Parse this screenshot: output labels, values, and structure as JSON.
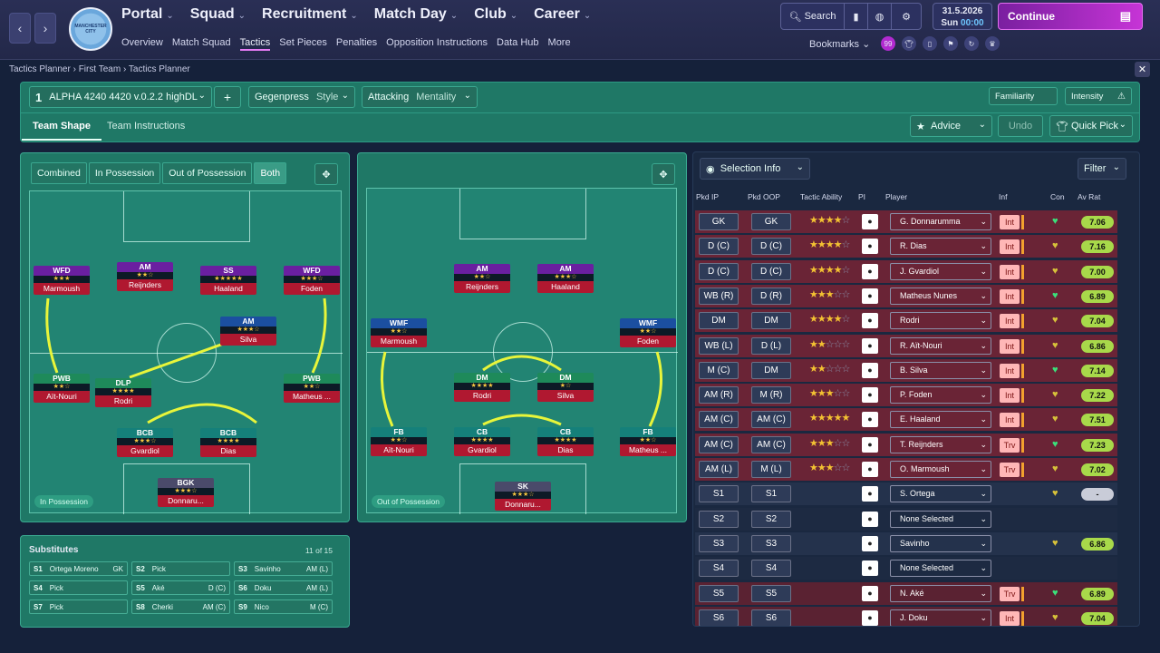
{
  "header": {
    "nav_back": "‹",
    "nav_fwd": "›",
    "crest": "MANCHESTER CITY",
    "main_nav": [
      {
        "label": "Portal"
      },
      {
        "label": "Squad"
      },
      {
        "label": "Recruitment"
      },
      {
        "label": "Match Day"
      },
      {
        "label": "Club"
      },
      {
        "label": "Career"
      }
    ],
    "sub_nav": [
      "Overview",
      "Match Squad",
      "Tactics",
      "Set Pieces",
      "Penalties",
      "Opposition Instructions",
      "Data Hub",
      "More"
    ],
    "search": "Search",
    "date": "31.5.2026",
    "day": "Sun",
    "time": "00:00",
    "continue": "Continue",
    "bookmarks": "Bookmarks",
    "badge": "99"
  },
  "breadcrumb": [
    "Tactics Planner",
    "First Team",
    "Tactics Planner"
  ],
  "tactic": {
    "number": "1",
    "name": "ALPHA 4240 4420 v.0.2.2 highDL",
    "style_value": "Gegenpress",
    "style_label": "Style",
    "mentality_value": "Attacking",
    "mentality_label": "Mentality",
    "familiarity": "Familiarity",
    "intensity": "Intensity",
    "add": "+"
  },
  "tabs": [
    "Team Shape",
    "Team Instructions"
  ],
  "actions": {
    "advice": "Advice",
    "undo": "Undo",
    "quick_pick": "Quick Pick"
  },
  "phase_toggle": [
    "Combined",
    "In Possession",
    "Out of Possession",
    "Both"
  ],
  "in_possession": {
    "label": "In Possession",
    "players": [
      {
        "role": "WFD",
        "name": "Marmoush",
        "stars": "★★★",
        "color": "#6a1fa0"
      },
      {
        "role": "AM",
        "name": "Reijnders",
        "stars": "★★☆",
        "color": "#6a1fa0"
      },
      {
        "role": "SS",
        "name": "Haaland",
        "stars": "★★★★★",
        "color": "#6a1fa0"
      },
      {
        "role": "WFD",
        "name": "Foden",
        "stars": "★★★☆",
        "color": "#6a1fa0"
      },
      {
        "role": "AM",
        "name": "Silva",
        "stars": "★★★☆",
        "color": "#1b4fa0"
      },
      {
        "role": "PWB",
        "name": "Aït-Nouri",
        "stars": "★★☆",
        "color": "#1e8a5a"
      },
      {
        "role": "DLP",
        "name": "Rodri",
        "stars": "★★★★",
        "color": "#1e8a5a"
      },
      {
        "role": "PWB",
        "name": "Matheus ...",
        "stars": "★★☆",
        "color": "#1e8a5a"
      },
      {
        "role": "BCB",
        "name": "Gvardiol",
        "stars": "★★★☆",
        "color": "#15807a"
      },
      {
        "role": "BCB",
        "name": "Dias",
        "stars": "★★★★",
        "color": "#15807a"
      },
      {
        "role": "BGK",
        "name": "Donnaru...",
        "stars": "★★★☆",
        "color": "#4a4a6a"
      }
    ]
  },
  "out_possession": {
    "label": "Out of Possession",
    "players": [
      {
        "role": "AM",
        "name": "Reijnders",
        "stars": "★★☆",
        "color": "#6a1fa0"
      },
      {
        "role": "AM",
        "name": "Haaland",
        "stars": "★★★☆",
        "color": "#6a1fa0"
      },
      {
        "role": "WMF",
        "name": "Marmoush",
        "stars": "★★☆",
        "color": "#1b4fa0"
      },
      {
        "role": "WMF",
        "name": "Foden",
        "stars": "★★☆",
        "color": "#1b4fa0"
      },
      {
        "role": "DM",
        "name": "Rodri",
        "stars": "★★★★",
        "color": "#1e8a5a"
      },
      {
        "role": "DM",
        "name": "Silva",
        "stars": "★☆",
        "color": "#1e8a5a"
      },
      {
        "role": "FB",
        "name": "Aït-Nouri",
        "stars": "★★☆",
        "color": "#15807a"
      },
      {
        "role": "CB",
        "name": "Gvardiol",
        "stars": "★★★★",
        "color": "#15807a"
      },
      {
        "role": "CB",
        "name": "Dias",
        "stars": "★★★★",
        "color": "#15807a"
      },
      {
        "role": "FB",
        "name": "Matheus ...",
        "stars": "★★☆",
        "color": "#15807a"
      },
      {
        "role": "SK",
        "name": "Donnaru...",
        "stars": "★★★☆",
        "color": "#4a4a6a"
      }
    ]
  },
  "substitutes": {
    "title": "Substitutes",
    "count": "11 of 15",
    "items": [
      {
        "slot": "S1",
        "name": "Ortega Moreno",
        "pos": "GK"
      },
      {
        "slot": "S2",
        "name": "Pick",
        "pos": ""
      },
      {
        "slot": "S3",
        "name": "Savinho",
        "pos": "AM (L)"
      },
      {
        "slot": "S4",
        "name": "Pick",
        "pos": ""
      },
      {
        "slot": "S5",
        "name": "Aké",
        "pos": "D (C)"
      },
      {
        "slot": "S6",
        "name": "Doku",
        "pos": "AM (L)"
      },
      {
        "slot": "S7",
        "name": "Pick",
        "pos": ""
      },
      {
        "slot": "S8",
        "name": "Cherki",
        "pos": "AM (C)"
      },
      {
        "slot": "S9",
        "name": "Nico",
        "pos": "M (C)"
      }
    ]
  },
  "selection": {
    "title": "Selection Info",
    "filter": "Filter",
    "columns": [
      "Pkd IP",
      "Pkd OOP",
      "Tactic Ability",
      "PI",
      "Player",
      "Inf",
      "Con",
      "Av Rat"
    ],
    "rows": [
      {
        "ip": "GK",
        "oop": "GK",
        "stars": 3.5,
        "player": "G. Donnarumma",
        "inf": "Int",
        "rat": "7.06",
        "bg": "#6a2436"
      },
      {
        "ip": "D (C)",
        "oop": "D (C)",
        "stars": 4,
        "player": "R. Dias",
        "inf": "Int",
        "rat": "7.16",
        "bg": "#6a2436"
      },
      {
        "ip": "D (C)",
        "oop": "D (C)",
        "stars": 4,
        "player": "J. Gvardiol",
        "inf": "Int",
        "rat": "7.00",
        "bg": "#6a2436"
      },
      {
        "ip": "WB (R)",
        "oop": "D (R)",
        "stars": 2.5,
        "player": "Matheus Nunes",
        "inf": "Int",
        "rat": "6.89",
        "bg": "#6a2436"
      },
      {
        "ip": "DM",
        "oop": "DM",
        "stars": 4,
        "player": "Rodri",
        "inf": "Int",
        "rat": "7.04",
        "bg": "#6a2436"
      },
      {
        "ip": "WB (L)",
        "oop": "D (L)",
        "stars": 2,
        "player": "R. Aït-Nouri",
        "inf": "Int",
        "rat": "6.86",
        "bg": "#6a2436"
      },
      {
        "ip": "M (C)",
        "oop": "DM",
        "stars": 2,
        "player": "B. Silva",
        "inf": "Int",
        "rat": "7.14",
        "bg": "#6a2436"
      },
      {
        "ip": "AM (R)",
        "oop": "M (R)",
        "stars": 3,
        "player": "P. Foden",
        "inf": "Int",
        "rat": "7.22",
        "bg": "#6a2436"
      },
      {
        "ip": "AM (C)",
        "oop": "AM (C)",
        "stars": 5,
        "player": "E. Haaland",
        "inf": "Int",
        "rat": "7.51",
        "bg": "#6a2436"
      },
      {
        "ip": "AM (C)",
        "oop": "AM (C)",
        "stars": 3,
        "player": "T. Reijnders",
        "inf": "Trv",
        "rat": "7.23",
        "bg": "#6a2436"
      },
      {
        "ip": "AM (L)",
        "oop": "M (L)",
        "stars": 2.5,
        "player": "O. Marmoush",
        "inf": "Trv",
        "rat": "7.02",
        "bg": "#6a2436"
      },
      {
        "ip": "S1",
        "oop": "S1",
        "stars": 0,
        "player": "S. Ortega",
        "inf": "",
        "rat": "-",
        "bg": "#24324c"
      },
      {
        "ip": "S2",
        "oop": "S2",
        "stars": 0,
        "player": "None Selected",
        "inf": "",
        "rat": "",
        "bg": "#1d2a42"
      },
      {
        "ip": "S3",
        "oop": "S3",
        "stars": 0,
        "player": "Savinho",
        "inf": "",
        "rat": "6.86",
        "bg": "#24324c"
      },
      {
        "ip": "S4",
        "oop": "S4",
        "stars": 0,
        "player": "None Selected",
        "inf": "",
        "rat": "",
        "bg": "#1d2a42"
      },
      {
        "ip": "S5",
        "oop": "S5",
        "stars": 0,
        "player": "N. Aké",
        "inf": "Trv",
        "rat": "6.89",
        "bg": "#5a2232"
      },
      {
        "ip": "S6",
        "oop": "S6",
        "stars": 0,
        "player": "J. Doku",
        "inf": "Int",
        "rat": "7.04",
        "bg": "#5a2232"
      }
    ]
  }
}
